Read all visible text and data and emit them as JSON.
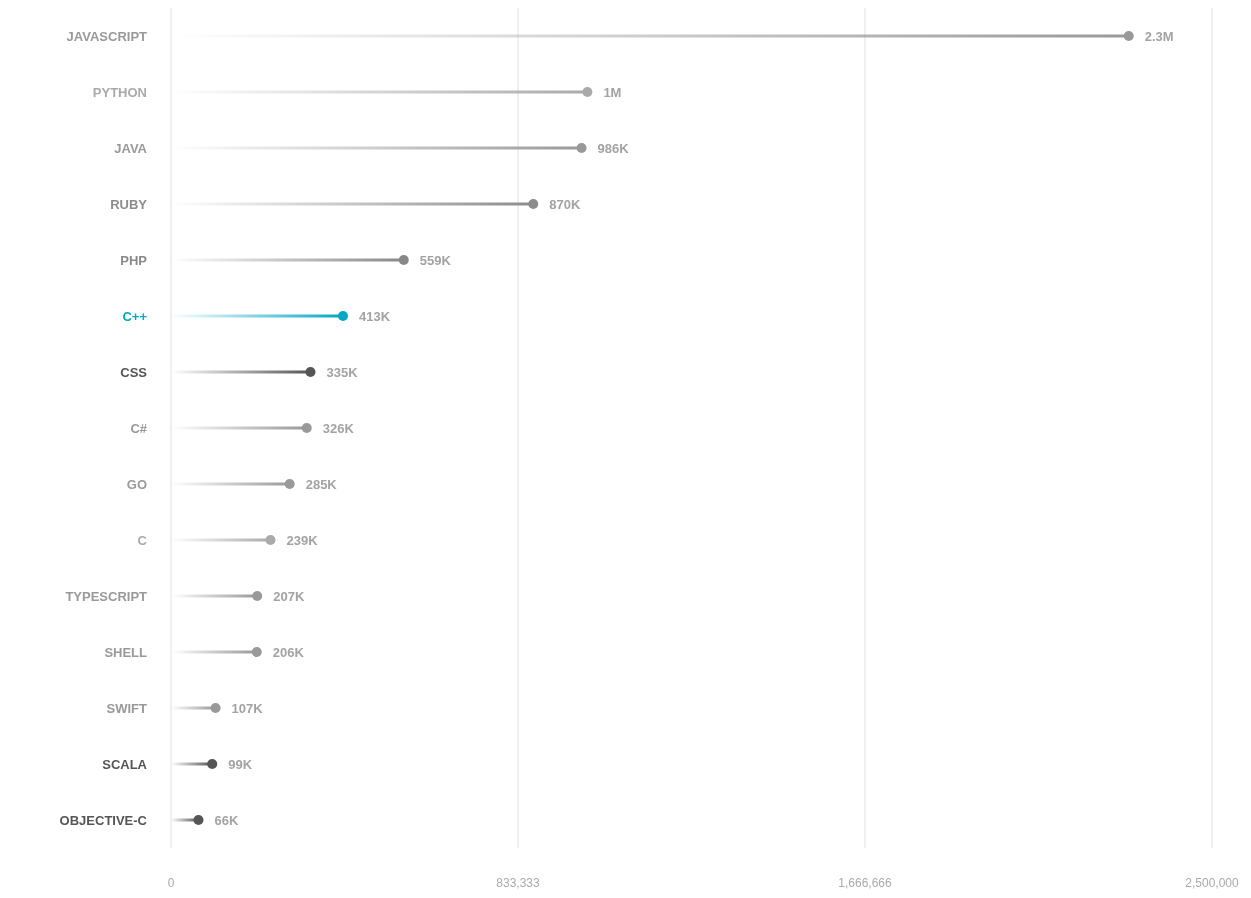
{
  "chart_data": {
    "type": "lollipop",
    "orientation": "horizontal",
    "categories": [
      "JAVASCRIPT",
      "PYTHON",
      "JAVA",
      "RUBY",
      "PHP",
      "C++",
      "CSS",
      "C#",
      "GO",
      "C",
      "TYPESCRIPT",
      "SHELL",
      "SWIFT",
      "SCALA",
      "OBJECTIVE-C"
    ],
    "values": [
      2300000,
      1000000,
      986000,
      870000,
      559000,
      413000,
      335000,
      326000,
      285000,
      239000,
      207000,
      206000,
      107000,
      99000,
      66000
    ],
    "colors": [
      "#999999",
      "#aaaaaa",
      "#999999",
      "#8c8c8c",
      "#888888",
      "#00a8c6",
      "#555555",
      "#999999",
      "#9a9a9a",
      "#aaaaaa",
      "#999999",
      "#999999",
      "#999999",
      "#555555",
      "#555555"
    ],
    "value_labels": [
      "2.3M",
      "1M",
      "986K",
      "870K",
      "559K",
      "413K",
      "335K",
      "326K",
      "285K",
      "239K",
      "207K",
      "206K",
      "107K",
      "99K",
      "66K"
    ],
    "xlim": [
      0,
      2500000
    ],
    "xticks": [
      0,
      {
        "value": 833333,
        "label": "833,333"
      },
      {
        "value": 1666666,
        "label": "1,666,666"
      },
      {
        "value": 2500000,
        "label": "2,500,000"
      }
    ],
    "grid": "x"
  }
}
